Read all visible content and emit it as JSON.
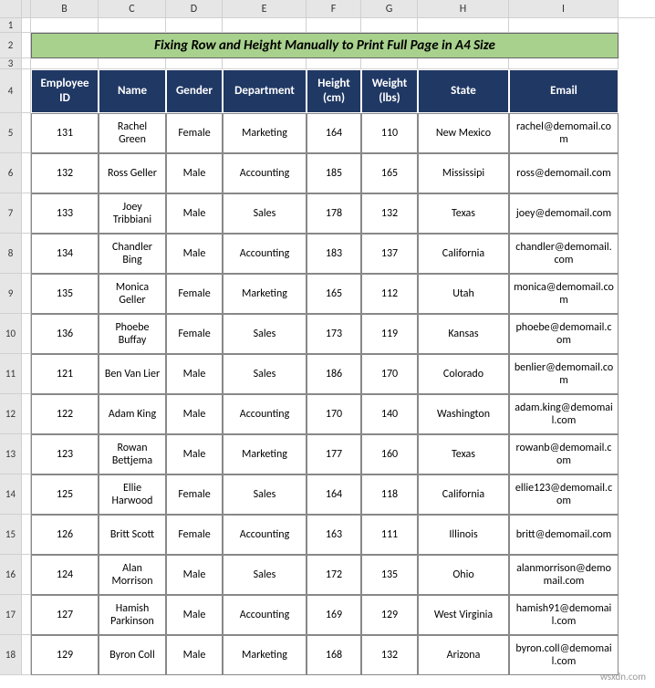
{
  "columns": {
    "B": "B",
    "C": "C",
    "D": "D",
    "E": "E",
    "F": "F",
    "G": "G",
    "H": "H",
    "I": "I"
  },
  "rows": {
    "r1": "1",
    "r2": "2",
    "r3": "3",
    "r4": "4",
    "r5": "5",
    "r6": "6",
    "r7": "7",
    "r8": "8",
    "r9": "9",
    "r10": "10",
    "r11": "11",
    "r12": "12",
    "r13": "13",
    "r14": "14",
    "r15": "15",
    "r16": "16",
    "r17": "17",
    "r18": "18"
  },
  "title": "Fixing Row and Height Manually to Print Full Page in A4 Size",
  "headers": {
    "emp_id": "Employee ID",
    "name": "Name",
    "gender": "Gender",
    "dept": "Department",
    "height": "Height (cm)",
    "weight": "Weight (lbs)",
    "state": "State",
    "email": "Email"
  },
  "data": [
    {
      "id": "131",
      "name": "Rachel Green",
      "gender": "Female",
      "dept": "Marketing",
      "height": "164",
      "weight": "110",
      "state": "New Mexico",
      "email": "rachel@demomail.com"
    },
    {
      "id": "132",
      "name": "Ross Geller",
      "gender": "Male",
      "dept": "Accounting",
      "height": "185",
      "weight": "165",
      "state": "Mississipi",
      "email": "ross@demomail.com"
    },
    {
      "id": "133",
      "name": "Joey Tribbiani",
      "gender": "Male",
      "dept": "Sales",
      "height": "178",
      "weight": "132",
      "state": "Texas",
      "email": "joey@demomail.com"
    },
    {
      "id": "134",
      "name": "Chandler Bing",
      "gender": "Male",
      "dept": "Accounting",
      "height": "183",
      "weight": "137",
      "state": "California",
      "email": "chandler@demomail.com"
    },
    {
      "id": "135",
      "name": "Monica Geller",
      "gender": "Female",
      "dept": "Marketing",
      "height": "165",
      "weight": "112",
      "state": "Utah",
      "email": "monica@demomail.com"
    },
    {
      "id": "136",
      "name": "Phoebe Buffay",
      "gender": "Female",
      "dept": "Sales",
      "height": "173",
      "weight": "119",
      "state": "Kansas",
      "email": "phoebe@demomail.com"
    },
    {
      "id": "121",
      "name": "Ben Van Lier",
      "gender": "Male",
      "dept": "Sales",
      "height": "186",
      "weight": "170",
      "state": "Colorado",
      "email": "benlier@demomail.com"
    },
    {
      "id": "122",
      "name": "Adam King",
      "gender": "Male",
      "dept": "Accounting",
      "height": "170",
      "weight": "140",
      "state": "Washington",
      "email": "adam.king@demomail.com"
    },
    {
      "id": "123",
      "name": "Rowan Bettjema",
      "gender": "Male",
      "dept": "Marketing",
      "height": "177",
      "weight": "160",
      "state": "Texas",
      "email": "rowanb@demomail.com"
    },
    {
      "id": "125",
      "name": "Ellie Harwood",
      "gender": "Female",
      "dept": "Sales",
      "height": "164",
      "weight": "118",
      "state": "California",
      "email": "ellie123@demomail.com"
    },
    {
      "id": "126",
      "name": "Britt Scott",
      "gender": "Female",
      "dept": "Accounting",
      "height": "163",
      "weight": "111",
      "state": "Illinois",
      "email": "britt@demomail.com"
    },
    {
      "id": "124",
      "name": "Alan Morrison",
      "gender": "Male",
      "dept": "Sales",
      "height": "172",
      "weight": "135",
      "state": "Ohio",
      "email": "alanmorrison@demomail.com"
    },
    {
      "id": "127",
      "name": "Hamish Parkinson",
      "gender": "Male",
      "dept": "Accounting",
      "height": "169",
      "weight": "129",
      "state": "West Virginia",
      "email": "hamish91@demomail.com"
    },
    {
      "id": "129",
      "name": "Byron Coll",
      "gender": "Male",
      "dept": "Marketing",
      "height": "168",
      "weight": "132",
      "state": "Arizona",
      "email": "byron.coll@demomail.com"
    }
  ],
  "watermark": "wsxdn.com",
  "colors": {
    "title_bg": "#a8d18d",
    "header_bg": "#203864",
    "header_fg": "#ffffff",
    "grid": "#d0d0d0",
    "data_border": "#888888"
  }
}
